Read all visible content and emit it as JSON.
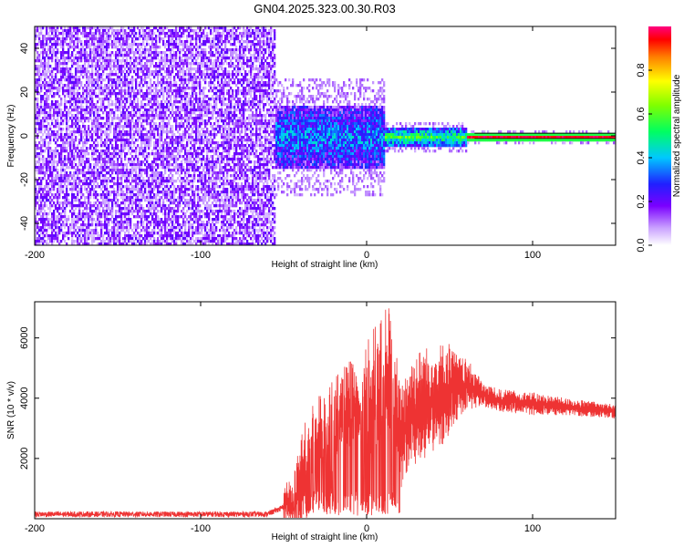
{
  "title": "GN04.2025.323.00.30.R03",
  "chart_data": [
    {
      "type": "heatmap",
      "title": "GN04.2025.323.00.30.R03",
      "xlabel": "Height of straight line (km)",
      "ylabel": "Frequency (Hz)",
      "xlim": [
        -200,
        150
      ],
      "ylim": [
        -50,
        50
      ],
      "xticks": [
        -200,
        -100,
        0,
        100
      ],
      "yticks": [
        -40,
        -20,
        0,
        20,
        40
      ],
      "colorbar": {
        "label": "Normalized spectral amplitude",
        "range": [
          0,
          1
        ],
        "ticks": [
          0.0,
          0.2,
          0.4,
          0.6,
          0.8
        ],
        "colormap": [
          "#ffffff",
          "#8a2be2",
          "#3a3aff",
          "#00c8ff",
          "#00ff80",
          "#80ff00",
          "#ffff00",
          "#ff8000",
          "#ff0000",
          "#ff0080"
        ]
      },
      "regions": [
        {
          "x": [
            -200,
            -55
          ],
          "description_amplitude": 0.08,
          "freq_spread": [
            -50,
            50
          ]
        },
        {
          "x": [
            -55,
            10
          ],
          "description_amplitude": 0.35,
          "freq_spread": [
            -15,
            15
          ]
        },
        {
          "x": [
            10,
            60
          ],
          "description_amplitude": 0.55,
          "freq_spread": [
            -4,
            4
          ]
        },
        {
          "x": [
            60,
            150
          ],
          "description_amplitude": 0.95,
          "freq_spread": [
            -1.5,
            1.5
          ]
        }
      ]
    },
    {
      "type": "line",
      "xlabel": "Height of straight line (km)",
      "ylabel": "SNR (10 * v/v)",
      "xlim": [
        -200,
        150
      ],
      "ylim": [
        0,
        7200
      ],
      "xticks": [
        -200,
        -100,
        0,
        100
      ],
      "yticks": [
        2000,
        4000,
        6000
      ],
      "color": "#ee3333",
      "series": [
        {
          "x": [
            -200,
            -150,
            -100,
            -60,
            -45,
            -40,
            -35,
            -30,
            -25,
            -20,
            -15,
            -10,
            -5,
            0,
            5,
            10,
            15,
            20,
            25,
            30,
            40,
            50,
            55,
            60,
            65,
            70,
            75,
            80,
            100,
            120,
            150
          ],
          "y": [
            150,
            150,
            150,
            150,
            500,
            1200,
            1600,
            2400,
            2700,
            3200,
            3600,
            3800,
            3600,
            4000,
            4200,
            4600,
            5000,
            2600,
            3300,
            3600,
            3900,
            4200,
            4300,
            4400,
            4300,
            4100,
            4000,
            3900,
            3800,
            3700,
            3550
          ],
          "y_peak": [
            200,
            200,
            200,
            200,
            1500,
            3000,
            3500,
            4200,
            4000,
            5000,
            4800,
            5500,
            4500,
            6000,
            6500,
            7000,
            7100,
            4500,
            5200,
            5600,
            5800,
            5900,
            5400,
            5300,
            5000,
            4500,
            4400,
            4300,
            4200,
            4000,
            3800
          ]
        }
      ]
    }
  ]
}
